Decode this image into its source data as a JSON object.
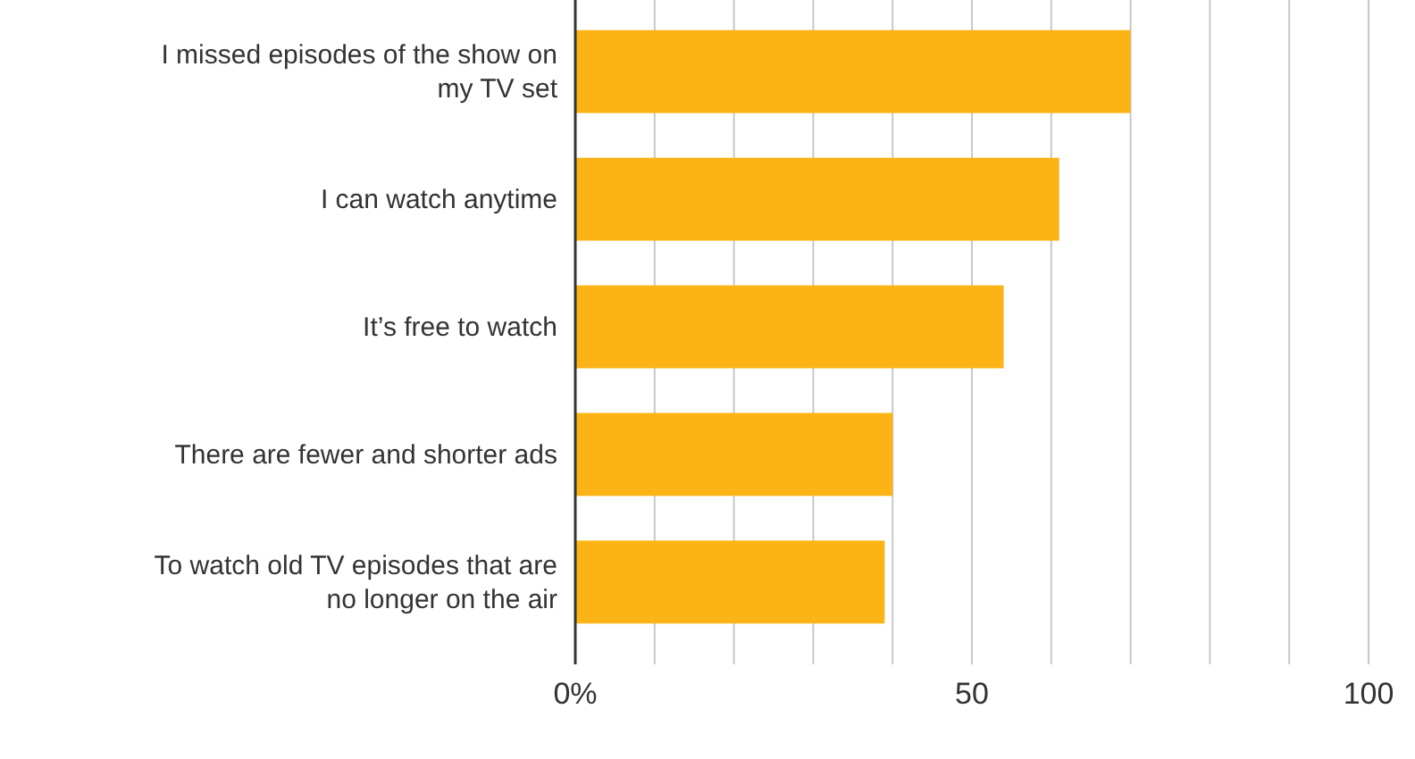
{
  "chart_data": {
    "type": "bar",
    "orientation": "horizontal",
    "categories": [
      "I missed episodes of the show on my TV set",
      "I can watch anytime",
      "It’s free to watch",
      "There are fewer and shorter ads",
      "To watch old TV episodes that are no longer on the air"
    ],
    "values": [
      70,
      61,
      54,
      40,
      39
    ],
    "color": "#fbb316",
    "xlim": [
      0,
      100
    ],
    "xticks": [
      {
        "value": 0,
        "label": "0%"
      },
      {
        "value": 10,
        "label": null
      },
      {
        "value": 20,
        "label": null
      },
      {
        "value": 30,
        "label": null
      },
      {
        "value": 40,
        "label": null
      },
      50,
      {
        "value": 60,
        "label": null
      },
      {
        "value": 70,
        "label": null
      },
      {
        "value": 80,
        "label": null
      },
      {
        "value": 90,
        "label": null
      },
      100
    ],
    "grid": "x"
  }
}
